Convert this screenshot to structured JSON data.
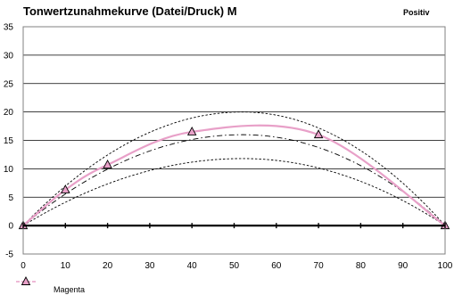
{
  "chart_data": {
    "type": "line",
    "title": "Tonwertzunahmekurve (Datei/Druck) M",
    "subtitle": "Positiv",
    "xlabel": "",
    "ylabel": "",
    "xlim": [
      0,
      100
    ],
    "ylim": [
      -5,
      35
    ],
    "x_ticks": [
      0,
      10,
      20,
      30,
      40,
      50,
      60,
      70,
      80,
      90,
      100
    ],
    "y_ticks": [
      -5,
      0,
      5,
      10,
      15,
      20,
      25,
      30,
      35
    ],
    "grid": "horizontal",
    "legend_position": "bottom-left",
    "series": [
      {
        "name": "Magenta",
        "role": "measured",
        "color": "#e8a0c8",
        "marker": "triangle",
        "x": [
          0,
          10,
          20,
          40,
          70,
          100
        ],
        "y": [
          0,
          6.3,
          10.7,
          16.5,
          16.0,
          0
        ]
      }
    ],
    "reference_curves": [
      {
        "style": "dashed",
        "color": "#000000",
        "peak_x": 52,
        "peak_y": 20
      },
      {
        "style": "dash-dot",
        "color": "#000000",
        "peak_x": 52,
        "peak_y": 16
      },
      {
        "style": "dashed",
        "color": "#000000",
        "peak_x": 52,
        "peak_y": 11.8
      }
    ]
  }
}
